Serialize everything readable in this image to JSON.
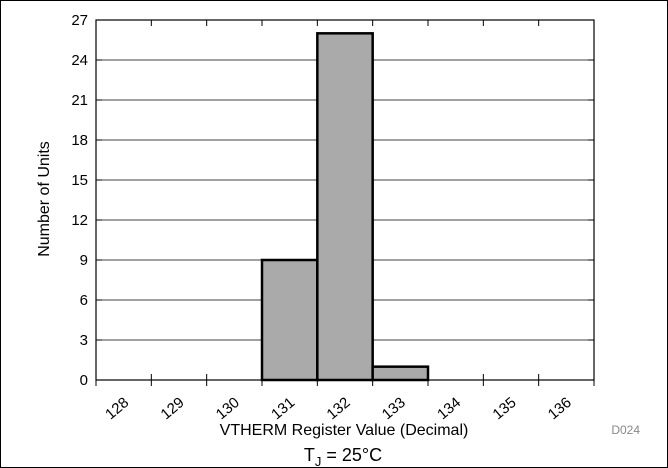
{
  "chart_data": {
    "type": "bar",
    "categories": [
      "128",
      "129",
      "130",
      "131",
      "132",
      "133",
      "134",
      "135",
      "136"
    ],
    "values": [
      0,
      0,
      0,
      9,
      26,
      1,
      0,
      0,
      0
    ],
    "xlabel": "VTHERM Register Value (Decimal)",
    "ylabel": "Number of Units",
    "ylim": [
      0,
      27
    ],
    "yticks": [
      0,
      3,
      6,
      9,
      12,
      15,
      18,
      21,
      24,
      27
    ],
    "grid": true,
    "legend": "none",
    "bar_color": "#aaaaaa",
    "annotation": {
      "code": "D024",
      "condition_main": "T",
      "condition_sub": "J",
      "condition_rest": " = 25°C"
    }
  }
}
